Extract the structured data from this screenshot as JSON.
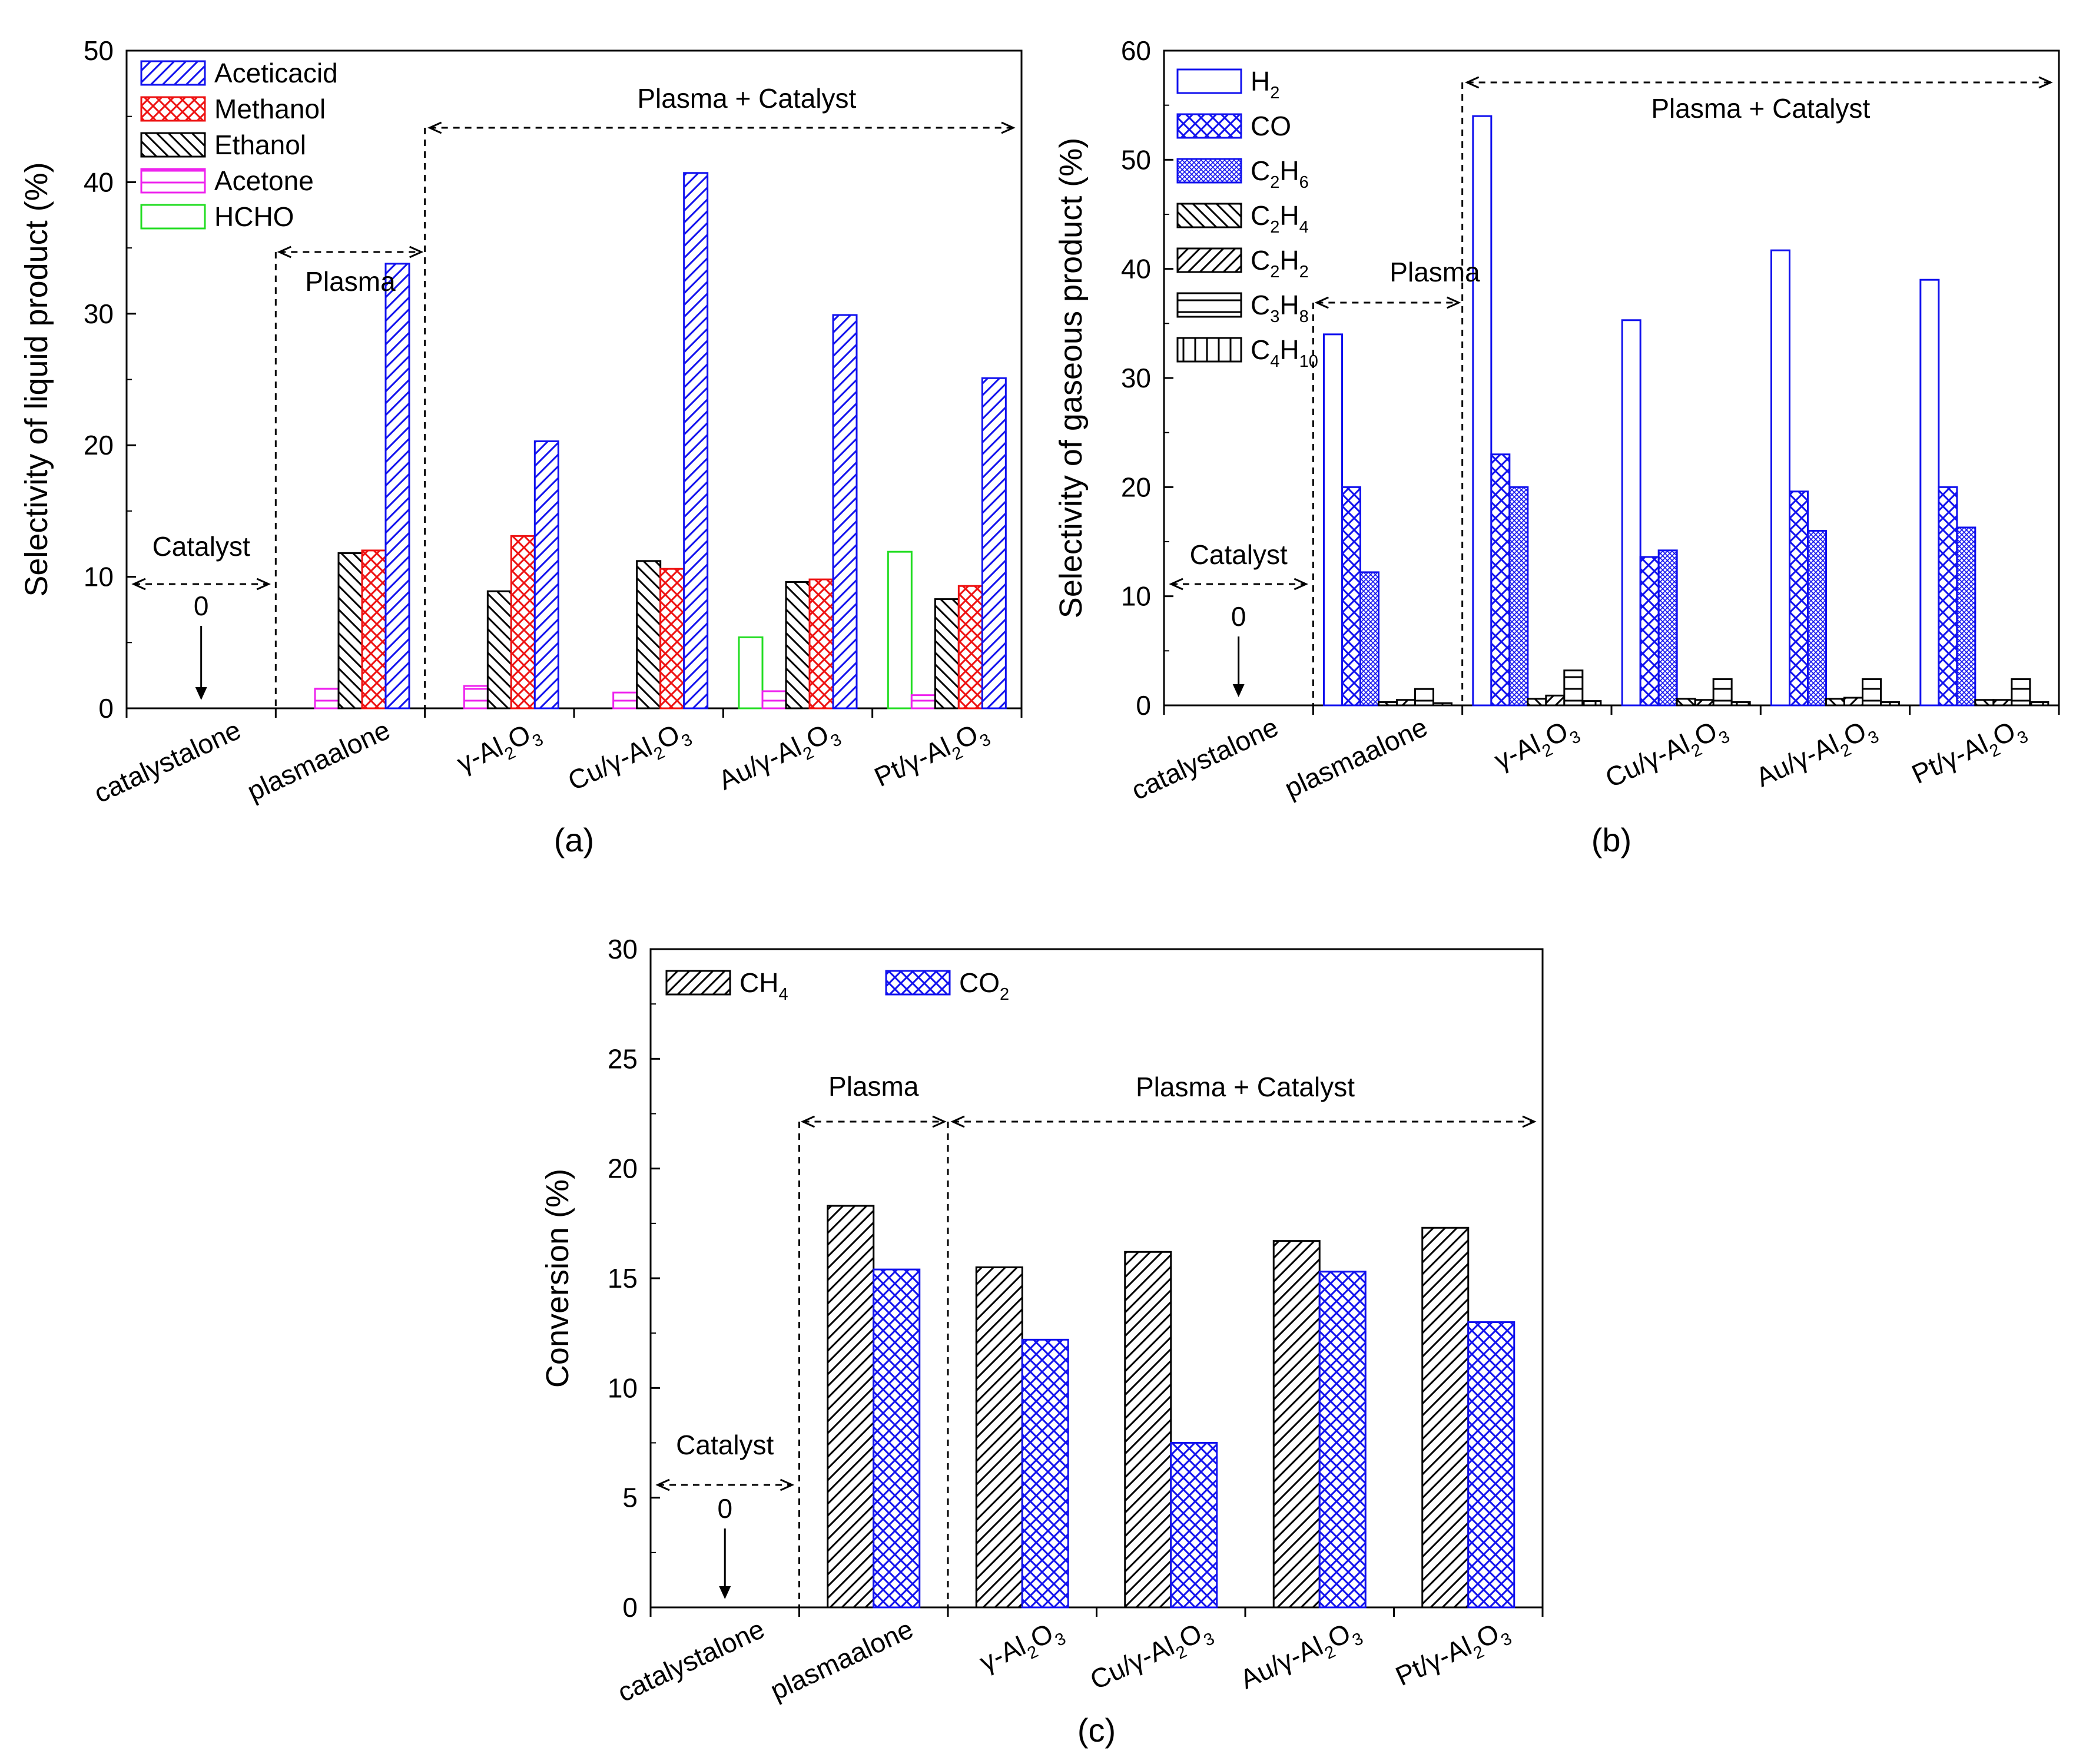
{
  "chart_data": [
    {
      "type": "bar",
      "panel_label": "(a)",
      "ylabel": "Selectivity of liquid product (%)",
      "xlabel": "",
      "ylim": [
        0,
        50
      ],
      "yticks": [
        "0",
        "10",
        "20",
        "30",
        "40",
        "50"
      ],
      "categories": [
        "catalyst alone",
        "plasma alone",
        "γ-Al2O3",
        "Cu/γ-Al2O3",
        "Au/γ-Al2O3",
        "Pt/γ-Al2O3"
      ],
      "series": [
        {
          "name": "HCHO",
          "sub": "",
          "color": "#22dd22",
          "pattern": "none",
          "values": [
            0,
            0,
            0,
            0,
            5.4,
            11.9
          ]
        },
        {
          "name": "Acetone",
          "sub": "",
          "color": "#ee22ee",
          "pattern": "hline",
          "values": [
            0,
            1.5,
            1.7,
            1.2,
            1.3,
            1.0
          ]
        },
        {
          "name": "Ethanol",
          "sub": "",
          "color": "#000000",
          "pattern": "diag-back",
          "values": [
            0,
            11.8,
            8.9,
            11.2,
            9.6,
            8.3
          ]
        },
        {
          "name": "Methanol",
          "sub": "",
          "color": "#ee1111",
          "pattern": "cross",
          "values": [
            0,
            12.0,
            13.1,
            10.6,
            9.8,
            9.3
          ]
        },
        {
          "name": "Acetic acid",
          "sub": "",
          "color": "#1111ee",
          "pattern": "diag-fwd",
          "values": [
            0,
            33.8,
            20.3,
            40.7,
            29.9,
            25.1
          ]
        }
      ],
      "legend_order": [
        "Acetic acid",
        "Methanol",
        "Ethanol",
        "Acetone",
        "HCHO"
      ],
      "annotations": {
        "catalyst": "Catalyst",
        "zero": "0",
        "plasma": "Plasma",
        "plasma_catalyst": "Plasma + Catalyst"
      }
    },
    {
      "type": "bar",
      "panel_label": "(b)",
      "ylabel": "Selectivity of gaseous product (%)",
      "xlabel": "",
      "ylim": [
        0,
        60
      ],
      "yticks": [
        "0",
        "10",
        "20",
        "30",
        "40",
        "50",
        "60"
      ],
      "categories": [
        "catalyst alone",
        "plasma alone",
        "γ-Al2O3",
        "Cu/γ-Al2O3",
        "Au/γ-Al2O3",
        "Pt/γ-Al2O3"
      ],
      "series": [
        {
          "name": "H2",
          "sub": "",
          "color": "#1111ee",
          "pattern": "none",
          "values": [
            0,
            34.0,
            54.0,
            35.3,
            41.7,
            39.0
          ]
        },
        {
          "name": "CO",
          "sub": "",
          "color": "#1111ee",
          "pattern": "cross",
          "values": [
            0,
            20.0,
            23.0,
            13.6,
            19.6,
            20.0
          ]
        },
        {
          "name": "C2H6",
          "sub": "",
          "color": "#1111ee",
          "pattern": "fine",
          "values": [
            0,
            12.2,
            20.0,
            14.2,
            16.0,
            16.3
          ]
        },
        {
          "name": "C2H4",
          "sub": "",
          "color": "#000000",
          "pattern": "diag-back",
          "values": [
            0,
            0.3,
            0.6,
            0.6,
            0.6,
            0.5
          ]
        },
        {
          "name": "C2H2",
          "sub": "",
          "color": "#000000",
          "pattern": "diag-fwd",
          "values": [
            0,
            0.5,
            0.9,
            0.5,
            0.7,
            0.5
          ]
        },
        {
          "name": "C3H8",
          "sub": "",
          "color": "#000000",
          "pattern": "hline",
          "values": [
            0,
            1.5,
            3.2,
            2.4,
            2.4,
            2.4
          ]
        },
        {
          "name": "C4H10",
          "sub": "",
          "color": "#000000",
          "pattern": "vline",
          "values": [
            0,
            0.2,
            0.4,
            0.3,
            0.3,
            0.3
          ]
        }
      ],
      "legend_order": [
        "H2",
        "CO",
        "C2H6",
        "C2H4",
        "C2H2",
        "C3H8",
        "C4H10"
      ],
      "annotations": {
        "catalyst": "Catalyst",
        "zero": "0",
        "plasma": "Plasma",
        "plasma_catalyst": "Plasma + Catalyst"
      }
    },
    {
      "type": "bar",
      "panel_label": "(c)",
      "ylabel": "Conversion (%)",
      "xlabel": "",
      "ylim": [
        0,
        30
      ],
      "yticks": [
        "0",
        "5",
        "10",
        "15",
        "20",
        "25",
        "30"
      ],
      "categories": [
        "catalyst alone",
        "plasma alone",
        "γ-Al2O3",
        "Cu/γ-Al2O3",
        "Au/γ-Al2O3",
        "Pt/γ-Al2O3"
      ],
      "series": [
        {
          "name": "CH4",
          "sub": "",
          "color": "#000000",
          "pattern": "diag-fwd",
          "values": [
            0,
            18.3,
            15.5,
            16.2,
            16.7,
            17.3
          ]
        },
        {
          "name": "CO2",
          "sub": "",
          "color": "#1111ee",
          "pattern": "cross",
          "values": [
            0,
            15.4,
            12.2,
            7.5,
            15.3,
            13.0
          ]
        }
      ],
      "legend_order": [
        "CH4",
        "CO2"
      ],
      "annotations": {
        "catalyst": "Catalyst",
        "zero": "0",
        "plasma": "Plasma",
        "plasma_catalyst": "Plasma + Catalyst"
      }
    }
  ]
}
